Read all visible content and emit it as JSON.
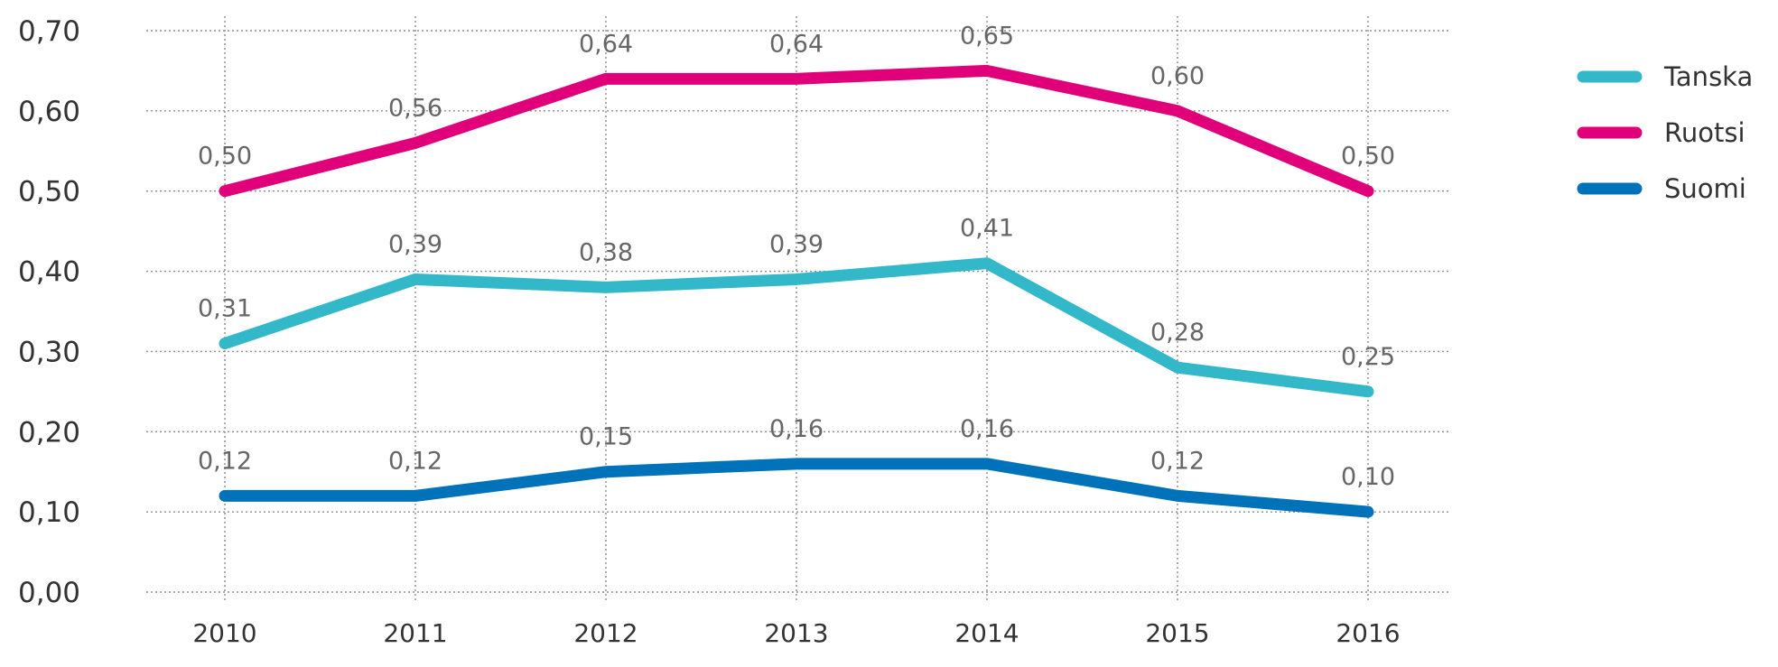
{
  "chart_data": {
    "type": "line",
    "title": "",
    "xlabel": "",
    "ylabel": "",
    "categories": [
      "2010",
      "2011",
      "2012",
      "2013",
      "2014",
      "2015",
      "2016"
    ],
    "ylim": [
      0,
      0.7
    ],
    "yticks": [
      0.0,
      0.1,
      0.2,
      0.3,
      0.4,
      0.5,
      0.6,
      0.7
    ],
    "ytick_labels": [
      "0,00",
      "0,10",
      "0,20",
      "0,30",
      "0,40",
      "0,50",
      "0,60",
      "0,70"
    ],
    "grid": true,
    "legend_position": "right",
    "series": [
      {
        "name": "Tanska",
        "color": "#33B8C9",
        "values": [
          0.31,
          0.39,
          0.38,
          0.39,
          0.41,
          0.28,
          0.25
        ],
        "labels": [
          "0,31",
          "0,39",
          "0,38",
          "0,39",
          "0,41",
          "0,28",
          "0,25"
        ]
      },
      {
        "name": "Ruotsi",
        "color": "#E0007A",
        "values": [
          0.5,
          0.56,
          0.64,
          0.64,
          0.65,
          0.6,
          0.5
        ],
        "labels": [
          "0,50",
          "0,56",
          "0,64",
          "0,64",
          "0,65",
          "0,60",
          "0,50"
        ]
      },
      {
        "name": "Suomi",
        "color": "#0072BA",
        "values": [
          0.12,
          0.12,
          0.15,
          0.16,
          0.16,
          0.12,
          0.1
        ],
        "labels": [
          "0,12",
          "0,12",
          "0,15",
          "0,16",
          "0,16",
          "0,12",
          "0,10"
        ]
      }
    ]
  }
}
